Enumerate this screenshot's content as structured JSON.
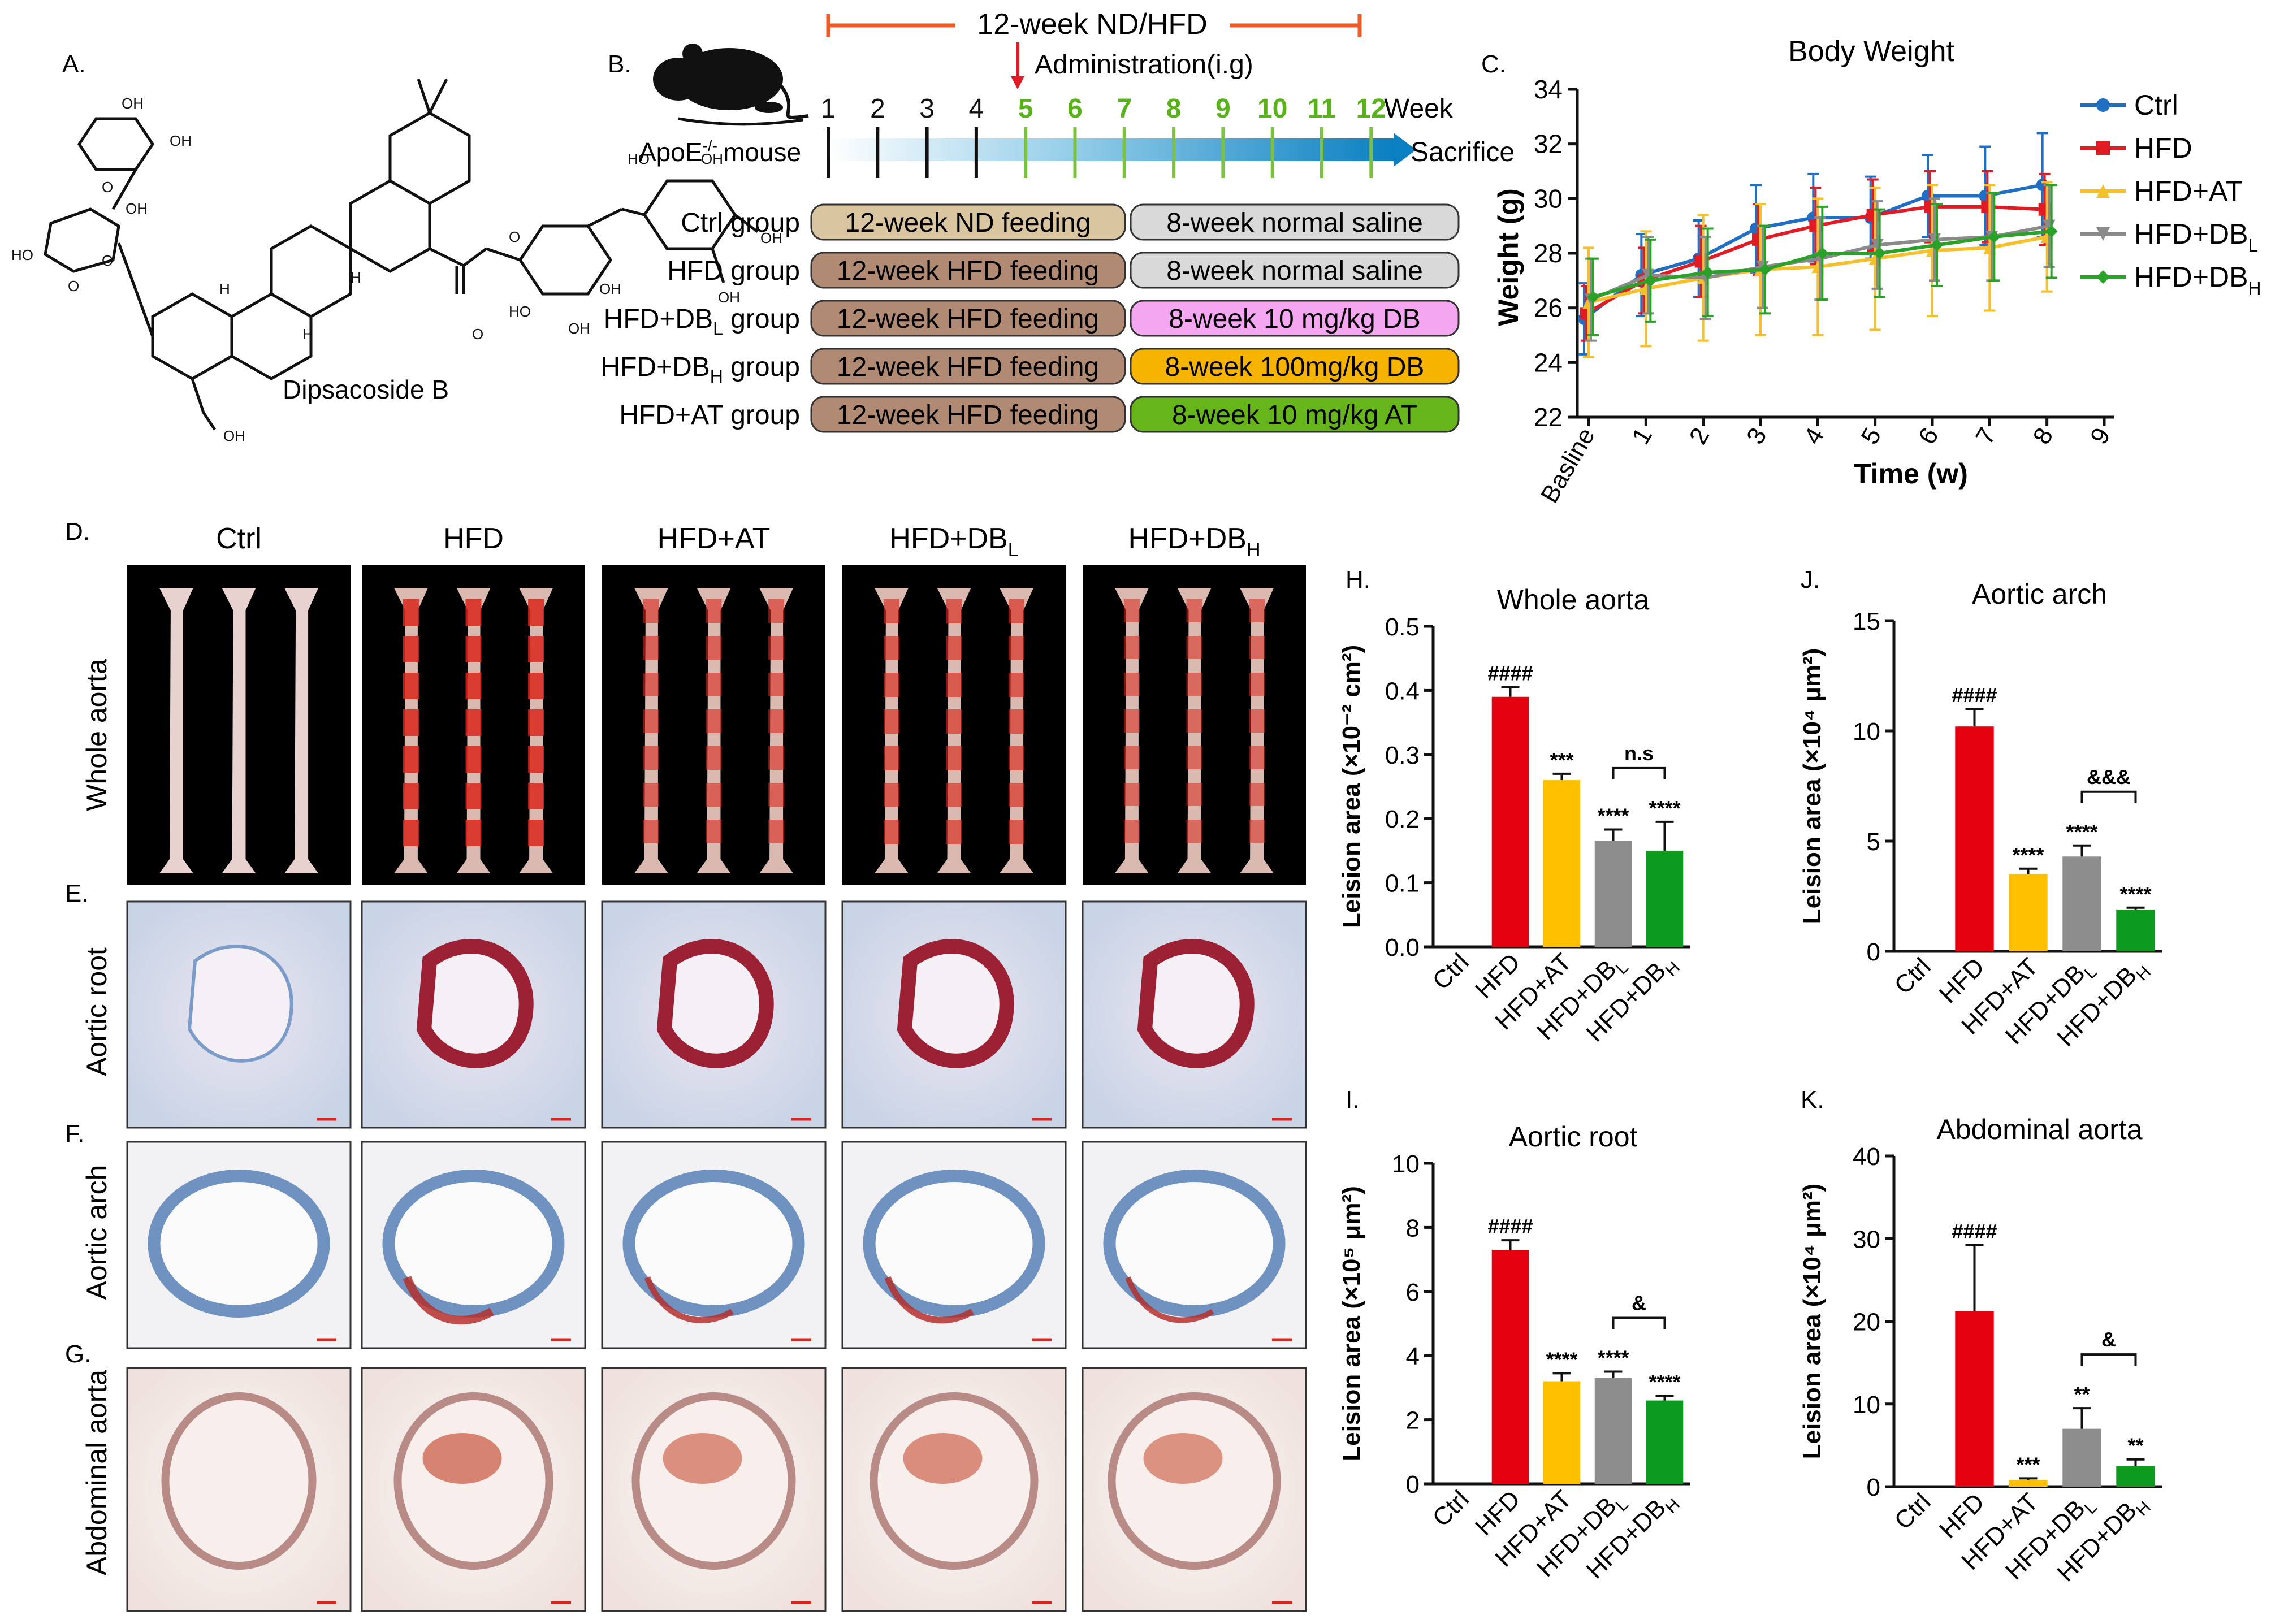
{
  "panels": {
    "A": {
      "letter": "A.",
      "compound": "Dipsacoside B",
      "oh": "OH",
      "ho": "HO",
      "h": "H",
      "o": "O"
    },
    "B": {
      "letter": "B.",
      "period_label": "12-week ND/HFD",
      "administration": "Administration(i.g)",
      "week_label": "Week",
      "weeks": [
        "1",
        "2",
        "3",
        "4",
        "5",
        "6",
        "7",
        "8",
        "9",
        "10",
        "11",
        "12"
      ],
      "mouse_label": "ApoE",
      "mouse_sup": "-/-",
      "mouse_suffix": "mouse",
      "sacrifice": "Sacrifice",
      "groups": [
        {
          "name": "Ctrl group",
          "sub": "",
          "feeding": "12-week ND feeding",
          "feed_color": "#d9c5a0",
          "treatment": "8-week normal saline",
          "treat_color": "#d9d9d9"
        },
        {
          "name": "HFD group",
          "sub": "",
          "feeding": "12-week HFD feeding",
          "feed_color": "#b08a73",
          "treatment": "8-week normal saline",
          "treat_color": "#d9d9d9"
        },
        {
          "name": "HFD+DB",
          "sub": "L",
          "name_suffix": " group",
          "feeding": "12-week HFD feeding",
          "feed_color": "#b08a73",
          "treatment": "8-week 10 mg/kg DB",
          "treat_color": "#f4a6f0"
        },
        {
          "name": "HFD+DB",
          "sub": "H",
          "name_suffix": " group",
          "feeding": "12-week HFD feeding",
          "feed_color": "#b08a73",
          "treatment": "8-week 100mg/kg DB",
          "treat_color": "#f6b400"
        },
        {
          "name": "HFD+AT group",
          "sub": "",
          "feeding": "12-week HFD feeding",
          "feed_color": "#b08a73",
          "treatment": "8-week 10 mg/kg AT",
          "treat_color": "#66b51b"
        }
      ]
    },
    "C": {
      "letter": "C.",
      "title": "Body Weight",
      "ylabel": "Weight (g)",
      "xlabel": "Time (w)",
      "legend": [
        "Ctrl",
        "HFD",
        "HFD+AT",
        "HFD+DB",
        "HFD+DB"
      ],
      "legend_subs": [
        "",
        "",
        "",
        "L",
        "H"
      ]
    },
    "D": {
      "letter": "D.",
      "row_label": "Whole aorta",
      "columns": [
        "Ctrl",
        "HFD",
        "HFD+AT",
        "HFD+DB",
        "HFD+DB"
      ],
      "column_subs": [
        "",
        "",
        "",
        "L",
        "H"
      ]
    },
    "E": {
      "letter": "E.",
      "row_label": "Aortic root"
    },
    "F": {
      "letter": "F.",
      "row_label": "Aortic arch"
    },
    "G": {
      "letter": "G.",
      "row_label": "Abdominal aorta"
    },
    "H": {
      "letter": "H."
    },
    "I": {
      "letter": "I."
    },
    "J": {
      "letter": "J."
    },
    "K": {
      "letter": "K."
    }
  },
  "chart_data": [
    {
      "id": "C",
      "type": "line",
      "title": "Body Weight",
      "xlabel": "Time (w)",
      "ylabel": "Weight (g)",
      "x_ticks": [
        "Basline",
        "1",
        "2",
        "3",
        "4",
        "5",
        "6",
        "7",
        "8",
        "9"
      ],
      "xlim": [
        0,
        9
      ],
      "ylim": [
        22,
        34
      ],
      "y_ticks": [
        22,
        24,
        26,
        28,
        30,
        32,
        34
      ],
      "x": [
        0,
        1,
        2,
        3,
        4,
        5,
        6,
        7,
        8
      ],
      "series": [
        {
          "name": "Ctrl",
          "color": "#1f6fc5",
          "marker": "circle",
          "values": [
            25.6,
            27.2,
            27.8,
            28.9,
            29.3,
            29.3,
            30.1,
            30.1,
            30.5
          ],
          "err": [
            1.3,
            1.5,
            1.4,
            1.6,
            1.6,
            1.5,
            1.5,
            1.8,
            1.9
          ]
        },
        {
          "name": "HFD",
          "color": "#e01b24",
          "marker": "square",
          "values": [
            25.8,
            27.0,
            27.7,
            28.5,
            29.0,
            29.4,
            29.7,
            29.7,
            29.6
          ],
          "err": [
            1.0,
            1.2,
            1.3,
            1.3,
            1.4,
            1.3,
            1.3,
            1.3,
            1.3
          ]
        },
        {
          "name": "HFD+AT",
          "color": "#f5c02a",
          "marker": "triangle",
          "values": [
            26.2,
            26.7,
            27.1,
            27.4,
            27.5,
            27.8,
            28.1,
            28.2,
            28.6
          ],
          "err": [
            2.0,
            2.1,
            2.3,
            2.4,
            2.5,
            2.6,
            2.4,
            2.3,
            2.0
          ]
        },
        {
          "name": "HFD+DBL",
          "color": "#8a8a8a",
          "marker": "triangle-down",
          "values": [
            26.3,
            27.2,
            27.1,
            27.5,
            27.8,
            28.3,
            28.5,
            28.6,
            29.0
          ],
          "err": [
            1.5,
            1.4,
            1.5,
            1.5,
            1.5,
            1.6,
            1.5,
            1.6,
            1.5
          ]
        },
        {
          "name": "HFD+DBH",
          "color": "#2aa22a",
          "marker": "diamond",
          "values": [
            26.4,
            27.0,
            27.3,
            27.4,
            28.0,
            28.0,
            28.3,
            28.6,
            28.8
          ],
          "err": [
            1.4,
            1.5,
            1.6,
            1.6,
            1.7,
            1.6,
            1.5,
            1.6,
            1.7
          ]
        }
      ]
    },
    {
      "id": "H",
      "type": "bar",
      "title": "Whole aorta",
      "ylabel": "Leision area (×10⁻² cm²)",
      "categories": [
        "Ctrl",
        "HFD",
        "HFD+AT",
        "HFD+DBL",
        "HFD+DBH"
      ],
      "values": [
        0,
        0.39,
        0.26,
        0.165,
        0.15
      ],
      "err": [
        0,
        0.015,
        0.01,
        0.018,
        0.045
      ],
      "colors": [
        "#ffffff",
        "#e4000f",
        "#ffc000",
        "#8c8c8c",
        "#0c9b1e"
      ],
      "labels": [
        "",
        "####",
        "***",
        "****",
        "****"
      ],
      "bracket": {
        "from": 3,
        "to": 4,
        "label": "n.s"
      },
      "ylim": [
        0,
        0.5
      ],
      "y_ticks": [
        "0.0",
        "0.1",
        "0.2",
        "0.3",
        "0.4",
        "0.5"
      ]
    },
    {
      "id": "I",
      "type": "bar",
      "title": "Aortic root",
      "ylabel": "Leision area (×10⁵ μm²)",
      "categories": [
        "Ctrl",
        "HFD",
        "HFD+AT",
        "HFD+DBL",
        "HFD+DBH"
      ],
      "values": [
        0,
        7.3,
        3.2,
        3.3,
        2.6
      ],
      "err": [
        0,
        0.3,
        0.25,
        0.2,
        0.15
      ],
      "colors": [
        "#ffffff",
        "#e4000f",
        "#ffc000",
        "#8c8c8c",
        "#0c9b1e"
      ],
      "labels": [
        "",
        "####",
        "****",
        "****",
        "****"
      ],
      "bracket": {
        "from": 3,
        "to": 4,
        "label": "&"
      },
      "ylim": [
        0,
        10
      ],
      "y_ticks": [
        "0",
        "2",
        "4",
        "6",
        "8",
        "10"
      ]
    },
    {
      "id": "J",
      "type": "bar",
      "title": "Aortic arch",
      "ylabel": "Leision area (×10⁴ μm²)",
      "categories": [
        "Ctrl",
        "HFD",
        "HFD+AT",
        "HFD+DBL",
        "HFD+DBH"
      ],
      "values": [
        0,
        10.2,
        3.5,
        4.3,
        1.9
      ],
      "err": [
        0,
        0.8,
        0.25,
        0.5,
        0.08
      ],
      "colors": [
        "#ffffff",
        "#e4000f",
        "#ffc000",
        "#8c8c8c",
        "#0c9b1e"
      ],
      "labels": [
        "",
        "####",
        "****",
        "****",
        "****"
      ],
      "bracket": {
        "from": 3,
        "to": 4,
        "label": "&&&"
      },
      "ylim": [
        0,
        15
      ],
      "y_ticks": [
        "0",
        "5",
        "10",
        "15"
      ]
    },
    {
      "id": "K",
      "type": "bar",
      "title": "Abdominal aorta",
      "ylabel": "Leision area (×10⁴ μm²)",
      "categories": [
        "Ctrl",
        "HFD",
        "HFD+AT",
        "HFD+DBL",
        "HFD+DBH"
      ],
      "values": [
        0,
        21.2,
        0.8,
        7.0,
        2.5
      ],
      "err": [
        0,
        8.0,
        0.2,
        2.5,
        0.8
      ],
      "colors": [
        "#ffffff",
        "#e4000f",
        "#ffc000",
        "#8c8c8c",
        "#0c9b1e"
      ],
      "labels": [
        "",
        "####",
        "***",
        "**",
        "**"
      ],
      "bracket": {
        "from": 3,
        "to": 4,
        "label": "&"
      },
      "ylim": [
        0,
        40
      ],
      "y_ticks": [
        "0",
        "10",
        "20",
        "30",
        "40"
      ]
    }
  ]
}
